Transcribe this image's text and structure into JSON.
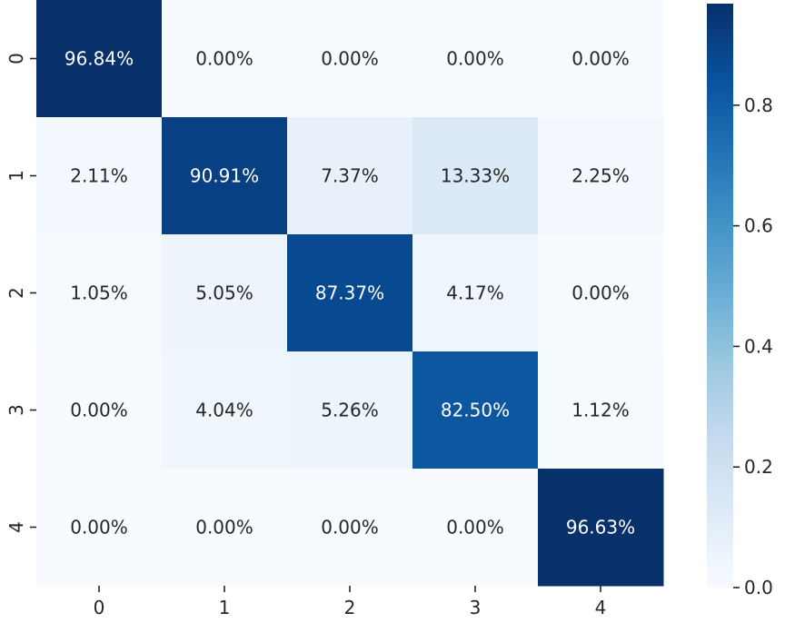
{
  "chart_data": {
    "type": "heatmap",
    "title": "",
    "xlabel": "",
    "ylabel": "",
    "x_categories": [
      "0",
      "1",
      "2",
      "3",
      "4"
    ],
    "y_categories": [
      "0",
      "1",
      "2",
      "3",
      "4"
    ],
    "values": [
      [
        0.9684,
        0.0,
        0.0,
        0.0,
        0.0
      ],
      [
        0.0211,
        0.9091,
        0.0737,
        0.1333,
        0.0225
      ],
      [
        0.0105,
        0.0505,
        0.8737,
        0.0417,
        0.0
      ],
      [
        0.0,
        0.0404,
        0.0526,
        0.825,
        0.0112
      ],
      [
        0.0,
        0.0,
        0.0,
        0.0,
        0.9663
      ]
    ],
    "annotations": [
      [
        "96.84%",
        "0.00%",
        "0.00%",
        "0.00%",
        "0.00%"
      ],
      [
        "2.11%",
        "90.91%",
        "7.37%",
        "13.33%",
        "2.25%"
      ],
      [
        "1.05%",
        "5.05%",
        "87.37%",
        "4.17%",
        "0.00%"
      ],
      [
        "0.00%",
        "4.04%",
        "5.26%",
        "82.50%",
        "1.12%"
      ],
      [
        "0.00%",
        "0.00%",
        "0.00%",
        "0.00%",
        "96.63%"
      ]
    ],
    "colormap": "Blues",
    "colorbar": {
      "range": [
        0,
        0.9684
      ],
      "ticks": [
        0.0,
        0.2,
        0.4,
        0.6,
        0.8
      ],
      "tick_labels": [
        "0.0",
        "0.2",
        "0.4",
        "0.6",
        "0.8"
      ]
    }
  }
}
